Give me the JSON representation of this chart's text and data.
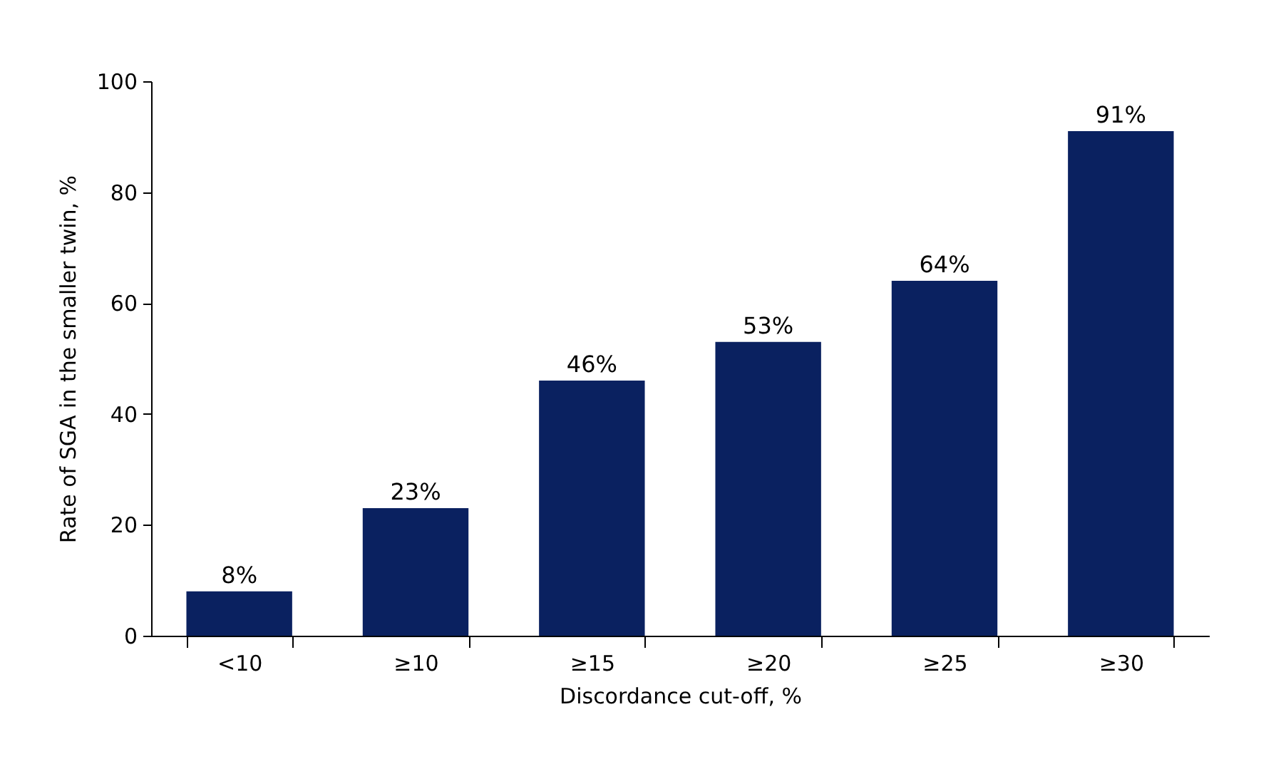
{
  "chart_data": {
    "type": "bar",
    "xlabel": "Discordance cut-off, %",
    "ylabel": "Rate of SGA in the smaller twin, %",
    "categories": [
      "<10",
      "≥10",
      "≥15",
      "≥20",
      "≥25",
      "≥30"
    ],
    "values": [
      8,
      23,
      46,
      53,
      64,
      91
    ],
    "value_labels": [
      "8%",
      "23%",
      "46%",
      "53%",
      "64%",
      "91%"
    ],
    "color": "#0a2160",
    "ylim": [
      0,
      100
    ],
    "yticks": [
      0,
      20,
      40,
      60,
      80,
      100
    ],
    "grid": false
  }
}
